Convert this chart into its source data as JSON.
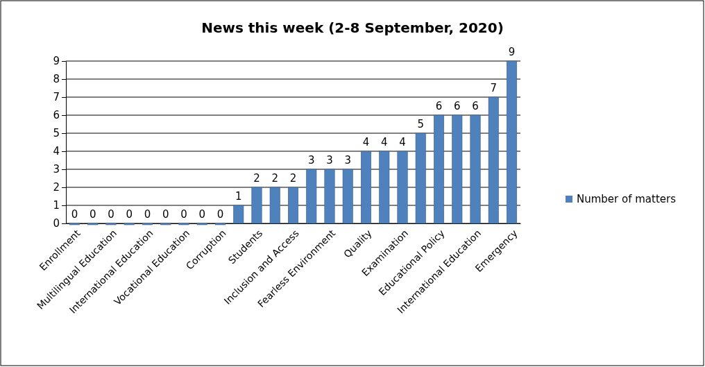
{
  "chart_data": {
    "type": "bar",
    "title": "News this week (2-8 September, 2020)",
    "categories": [
      "Enrollment",
      null,
      "Multilingual Education",
      null,
      "International Education",
      null,
      "Vocational Education",
      null,
      "Corruption",
      null,
      "Students",
      null,
      "Inclusion and Access",
      null,
      "Fearless Environment",
      null,
      "Quality",
      null,
      "Examination",
      null,
      "Educational Policy",
      null,
      "International Education",
      null,
      "Emergency"
    ],
    "series": [
      {
        "name": "Number of matters",
        "color": "#4f81bd",
        "values": [
          0,
          0,
          0,
          0,
          0,
          0,
          0,
          0,
          0,
          1,
          2,
          2,
          2,
          3,
          3,
          3,
          4,
          4,
          4,
          5,
          6,
          6,
          6,
          7,
          9
        ]
      }
    ],
    "ylim": [
      0,
      9
    ],
    "yticks": [
      0,
      1,
      2,
      3,
      4,
      5,
      6,
      7,
      8,
      9
    ],
    "grid": "y",
    "legend": "right",
    "data_labels": true
  }
}
